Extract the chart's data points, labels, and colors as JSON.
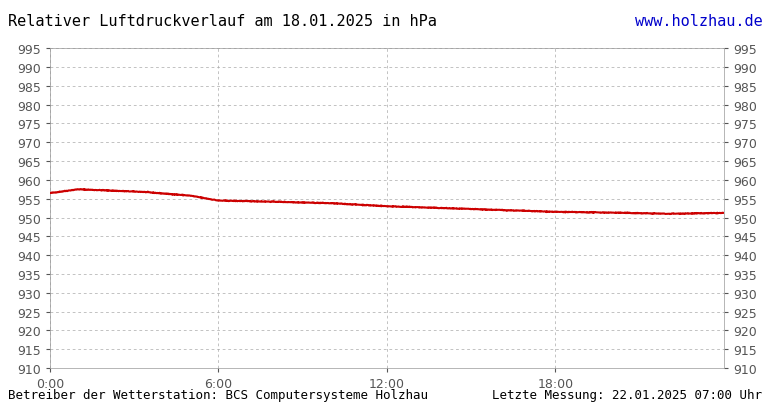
{
  "title": "Relativer Luftdruckverlauf am 18.01.2025 in hPa",
  "title_color": "#000000",
  "url_text": "www.holzhau.de",
  "url_color": "#0000cc",
  "footer_left": "Betreiber der Wetterstation: BCS Computersysteme Holzhau",
  "footer_right": "Letzte Messung: 22.01.2025 07:00 Uhr",
  "footer_color": "#000000",
  "bg_color": "#ffffff",
  "plot_bg_color": "#ffffff",
  "grid_color": "#aaaaaa",
  "line_color": "#cc0000",
  "line_width": 1.5,
  "xtick_labels": [
    "0:00",
    "6:00",
    "12:00",
    "18:00"
  ],
  "xtick_positions": [
    0,
    360,
    720,
    1080
  ],
  "x_max": 1440,
  "ylim_min": 910,
  "ylim_max": 995,
  "ytick_step": 5,
  "font_size_title": 11,
  "font_size_ticks": 9,
  "font_size_footer": 9,
  "control_times": [
    0,
    60,
    120,
    200,
    300,
    360,
    480,
    600,
    720,
    840,
    960,
    1080,
    1200,
    1320,
    1440
  ],
  "control_pressures": [
    956.5,
    957.5,
    957.2,
    956.8,
    955.8,
    954.5,
    954.2,
    953.8,
    953.0,
    952.5,
    952.0,
    951.5,
    951.3,
    951.0,
    951.2
  ]
}
